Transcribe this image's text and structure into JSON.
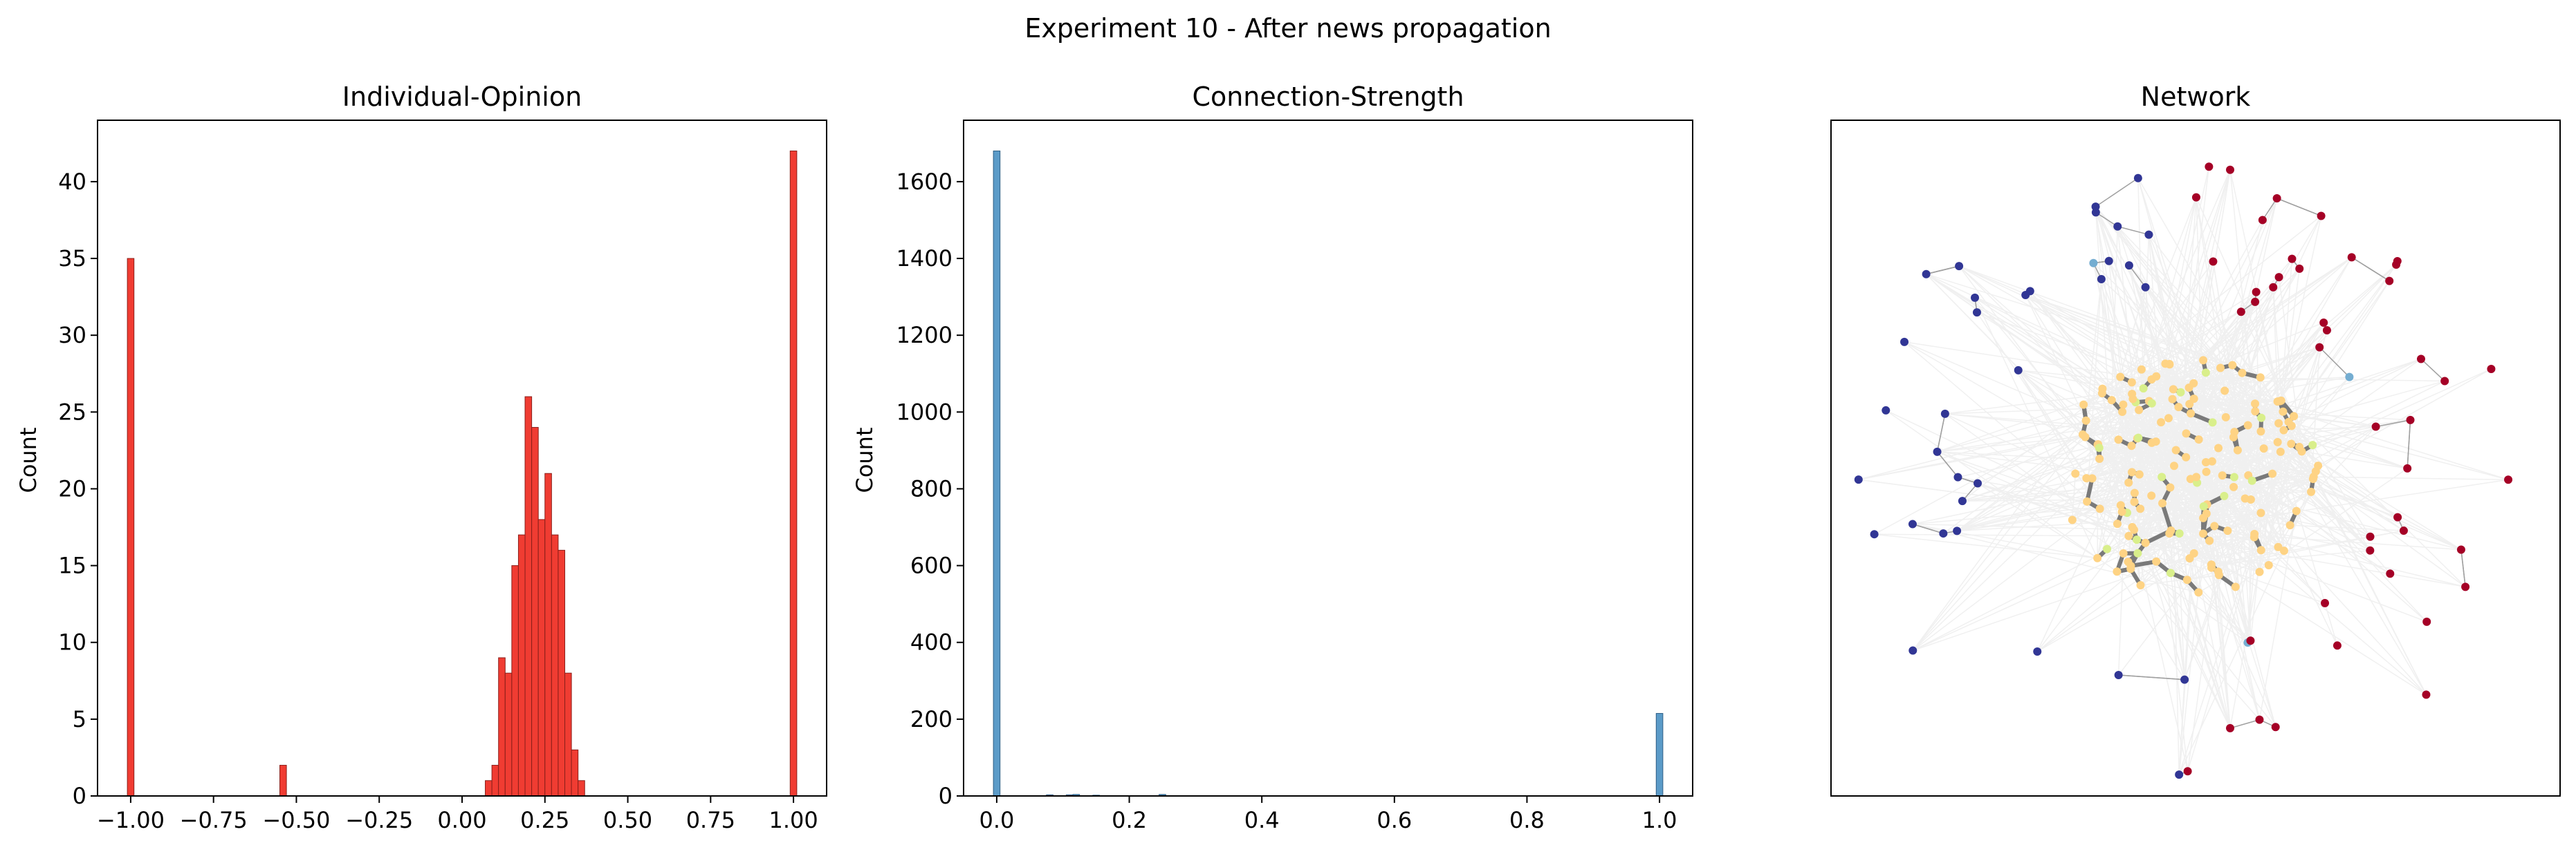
{
  "figure": {
    "suptitle": "Experiment 10 - After news propagation"
  },
  "chart_data": [
    {
      "type": "bar",
      "title": "Individual-Opinion",
      "xlabel": "",
      "ylabel": "Count",
      "xlim": [
        -1.1,
        1.1
      ],
      "ylim": [
        0,
        44
      ],
      "xticks": [
        "−1.00",
        "−0.75",
        "−0.50",
        "−0.25",
        "0.00",
        "0.25",
        "0.50",
        "0.75",
        "1.00"
      ],
      "xtick_values": [
        -1.0,
        -0.75,
        -0.5,
        -0.25,
        0.0,
        0.25,
        0.5,
        0.75,
        1.0
      ],
      "yticks": [
        "0",
        "5",
        "10",
        "15",
        "20",
        "25",
        "30",
        "35",
        "40"
      ],
      "ytick_values": [
        0,
        5,
        10,
        15,
        20,
        25,
        30,
        35,
        40
      ],
      "bar_color": "#f03c32",
      "edge_color": "#8a1f1a",
      "bin_width": 0.02,
      "bins": [
        {
          "x": -1.0,
          "value": 35
        },
        {
          "x": -0.54,
          "value": 2
        },
        {
          "x": 0.08,
          "value": 1
        },
        {
          "x": 0.1,
          "value": 2
        },
        {
          "x": 0.12,
          "value": 9
        },
        {
          "x": 0.14,
          "value": 8
        },
        {
          "x": 0.16,
          "value": 15
        },
        {
          "x": 0.18,
          "value": 17
        },
        {
          "x": 0.2,
          "value": 26
        },
        {
          "x": 0.22,
          "value": 24
        },
        {
          "x": 0.24,
          "value": 18
        },
        {
          "x": 0.26,
          "value": 21
        },
        {
          "x": 0.28,
          "value": 17
        },
        {
          "x": 0.3,
          "value": 16
        },
        {
          "x": 0.32,
          "value": 8
        },
        {
          "x": 0.34,
          "value": 3
        },
        {
          "x": 0.36,
          "value": 1
        },
        {
          "x": 1.0,
          "value": 42
        }
      ]
    },
    {
      "type": "bar",
      "title": "Connection-Strength",
      "xlabel": "",
      "ylabel": "Count",
      "xlim": [
        -0.05,
        1.05
      ],
      "ylim": [
        0,
        1760
      ],
      "xticks": [
        "0.0",
        "0.2",
        "0.4",
        "0.6",
        "0.8",
        "1.0"
      ],
      "xtick_values": [
        0.0,
        0.2,
        0.4,
        0.6,
        0.8,
        1.0
      ],
      "yticks": [
        "0",
        "200",
        "400",
        "600",
        "800",
        "1000",
        "1200",
        "1400",
        "1600"
      ],
      "ytick_values": [
        0,
        200,
        400,
        600,
        800,
        1000,
        1200,
        1400,
        1600
      ],
      "bar_color": "#5b9bc8",
      "edge_color": "#2f5f86",
      "bin_width": 0.01,
      "bins": [
        {
          "x": 0.0,
          "value": 1680
        },
        {
          "x": 0.08,
          "value": 3
        },
        {
          "x": 0.11,
          "value": 3
        },
        {
          "x": 0.12,
          "value": 4
        },
        {
          "x": 0.15,
          "value": 2
        },
        {
          "x": 0.25,
          "value": 4
        },
        {
          "x": 1.0,
          "value": 215
        }
      ]
    },
    {
      "type": "network",
      "title": "Network",
      "node_colors": {
        "negative": "#313695",
        "positive": "#a50026",
        "neutral": "#fed384",
        "mild": "#d9ef8b",
        "light_blue": "#74add1"
      },
      "edge_colors": {
        "strong": "#7a7a7a",
        "thin": "#a0a0a0",
        "faint": "#f0f0f0"
      }
    }
  ]
}
